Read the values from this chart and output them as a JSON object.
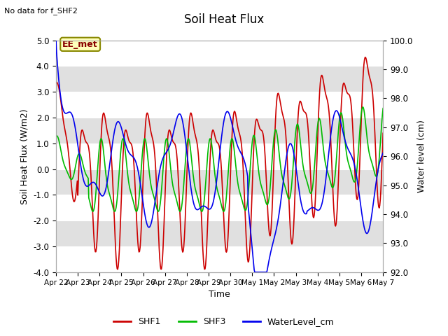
{
  "title": "Soil Heat Flux",
  "top_left_text": "No data for f_SHF2",
  "annotation_text": "EE_met",
  "ylabel_left": "Soil Heat Flux (W/m2)",
  "ylabel_right": "Water level (cm)",
  "xlabel": "Time",
  "ylim_left": [
    -4.0,
    5.0
  ],
  "ylim_right": [
    92.0,
    100.0
  ],
  "background_color": "#ffffff",
  "plot_bg_color": "#e0e0e0",
  "x_tick_labels": [
    "Apr 22",
    "Apr 23",
    "Apr 24",
    "Apr 25",
    "Apr 26",
    "Apr 27",
    "Apr 28",
    "Apr 29",
    "Apr 30",
    "May 1",
    "May 2",
    "May 3",
    "May 4",
    "May 5",
    "May 6",
    "May 7"
  ],
  "SHF1_color": "#cc0000",
  "SHF3_color": "#00bb00",
  "WaterLevel_color": "#0000ee",
  "line_width": 1.2
}
